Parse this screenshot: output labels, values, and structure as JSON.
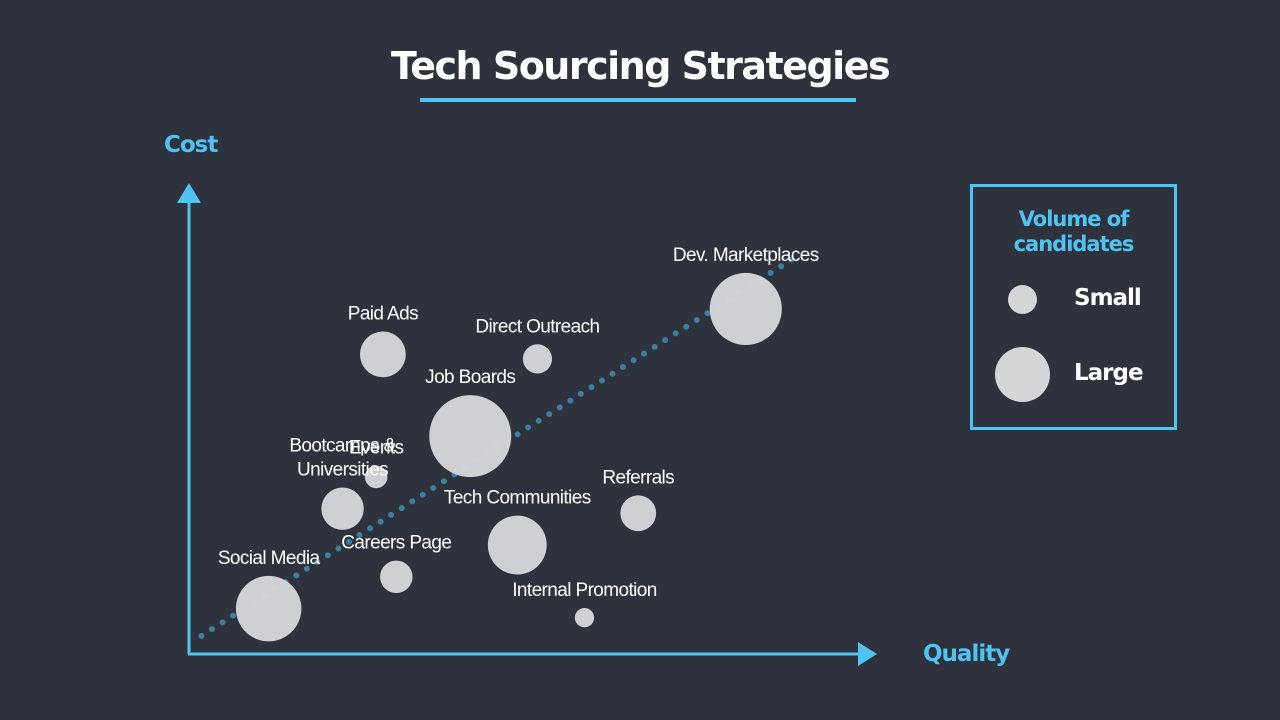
{
  "title": "Tech Sourcing Strategies",
  "colors": {
    "background": "#2d323d",
    "accent": "#4fc3f1",
    "bubble": "#d5d6d8",
    "trend": "#3f7f9e",
    "text": "#ffffff"
  },
  "legend": {
    "title_line1": "Volume of",
    "title_line2": "candidates",
    "small_label": "Small",
    "large_label": "Large"
  },
  "chart_data": {
    "type": "scatter",
    "title": "Tech Sourcing Strategies",
    "xlabel": "Quality",
    "ylabel": "Cost",
    "xlim": [
      0,
      10
    ],
    "ylim": [
      0,
      10
    ],
    "grid": false,
    "legend_position": "right",
    "trend_line": {
      "style": "dotted",
      "from": [
        0.2,
        0.4
      ],
      "to": [
        9.1,
        8.8
      ]
    },
    "points": [
      {
        "label": [
          "Dev. Marketplaces"
        ],
        "x": 8.3,
        "y": 7.6,
        "volume": 0.85
      },
      {
        "label": [
          "Paid  Ads"
        ],
        "x": 2.9,
        "y": 6.6,
        "volume": 0.45
      },
      {
        "label": [
          "Direct Outreach"
        ],
        "x": 5.2,
        "y": 6.5,
        "volume": 0.2
      },
      {
        "label": [
          "Job Boards"
        ],
        "x": 4.2,
        "y": 4.8,
        "volume": 1.0
      },
      {
        "label": [
          "Events"
        ],
        "x": 2.8,
        "y": 3.9,
        "volume": 0.1
      },
      {
        "label": [
          "Bootcamps &",
          "Universities"
        ],
        "x": 2.3,
        "y": 3.2,
        "volume": 0.4
      },
      {
        "label": [
          "Tech Communities"
        ],
        "x": 4.9,
        "y": 2.4,
        "volume": 0.65
      },
      {
        "label": [
          "Referrals"
        ],
        "x": 6.7,
        "y": 3.1,
        "volume": 0.3
      },
      {
        "label": [
          "Careers Page"
        ],
        "x": 3.1,
        "y": 1.7,
        "volume": 0.25
      },
      {
        "label": [
          "Social Media"
        ],
        "x": 1.2,
        "y": 1.0,
        "volume": 0.75
      },
      {
        "label": [
          "Internal Promotion"
        ],
        "x": 5.9,
        "y": 0.8,
        "volume": 0.05
      }
    ]
  }
}
